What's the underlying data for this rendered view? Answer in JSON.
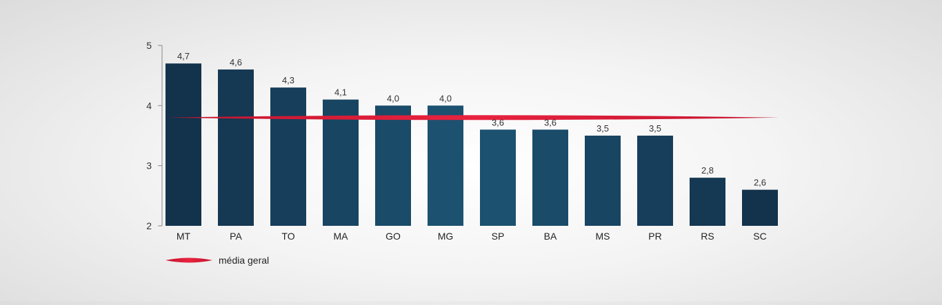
{
  "chart_data": {
    "type": "bar",
    "categories": [
      "MT",
      "PA",
      "TO",
      "MA",
      "GO",
      "MG",
      "SP",
      "BA",
      "MS",
      "PR",
      "RS",
      "SC"
    ],
    "values": [
      4.7,
      4.6,
      4.3,
      4.1,
      4.0,
      4.0,
      3.6,
      3.6,
      3.5,
      3.5,
      2.8,
      2.6
    ],
    "value_labels": [
      "4,7",
      "4,6",
      "4,3",
      "4,1",
      "4,0",
      "4,0",
      "3,6",
      "3,6",
      "3,5",
      "3,5",
      "2,8",
      "2,6"
    ],
    "ylim": [
      2,
      5
    ],
    "yticks": [
      2,
      3,
      4,
      5
    ],
    "ytick_labels": [
      "2",
      "3",
      "4",
      "5"
    ],
    "reference_line": {
      "name": "média geral",
      "value": 3.8,
      "color": "#e0213f"
    },
    "legend": {
      "label": "média geral",
      "position": "bottom-left"
    },
    "grid": false,
    "colors": {
      "bar_dark": "#13324c",
      "bar_light": "#1d5474",
      "axis": "#888888"
    }
  }
}
